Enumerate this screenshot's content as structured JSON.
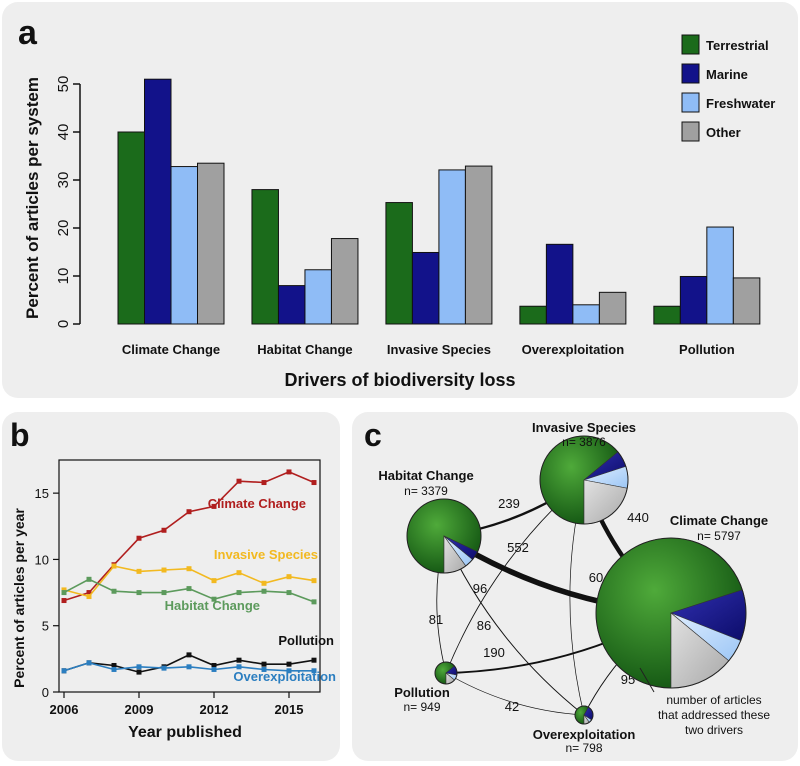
{
  "panels": {
    "a": "a",
    "b": "b",
    "c": "c"
  },
  "chart_data": [
    {
      "id": "a",
      "type": "bar",
      "xlabel": "Drivers of biodiversity loss",
      "ylabel": "Percent of articles per system",
      "ylim": [
        0,
        55
      ],
      "yticks": [
        0,
        10,
        20,
        30,
        40,
        50
      ],
      "categories": [
        "Climate Change",
        "Habitat Change",
        "Invasive Species",
        "Overexploitation",
        "Pollution"
      ],
      "series": [
        {
          "name": "Terrestrial",
          "color": "#1b6b1b",
          "values": [
            40,
            28,
            25.3,
            3.7,
            3.7
          ]
        },
        {
          "name": "Marine",
          "color": "#12128a",
          "values": [
            51,
            8,
            14.9,
            16.6,
            9.9
          ]
        },
        {
          "name": "Freshwater",
          "color": "#8fbcf6",
          "values": [
            32.8,
            11.3,
            32.1,
            4,
            20.2
          ]
        },
        {
          "name": "Other",
          "color": "#a0a0a0",
          "values": [
            33.5,
            17.8,
            32.9,
            6.6,
            9.6
          ]
        }
      ],
      "legend_position": "top-right"
    },
    {
      "id": "b",
      "type": "line",
      "xlabel": "Year published",
      "ylabel": "Percent of articles per year",
      "xlim": [
        2006,
        2016
      ],
      "ylim": [
        0,
        17.5
      ],
      "xticks": [
        2006,
        2009,
        2012,
        2015
      ],
      "yticks": [
        0,
        5,
        10,
        15
      ],
      "x": [
        2006,
        2007,
        2008,
        2009,
        2010,
        2011,
        2012,
        2013,
        2014,
        2015,
        2016
      ],
      "series": [
        {
          "name": "Climate Change",
          "color": "#b01e1e",
          "values": [
            6.9,
            7.5,
            9.6,
            11.6,
            12.2,
            13.6,
            14.0,
            15.9,
            15.8,
            16.6,
            15.8
          ]
        },
        {
          "name": "Invasive Species",
          "color": "#f2b920",
          "values": [
            7.7,
            7.2,
            9.5,
            9.1,
            9.2,
            9.3,
            8.4,
            9.0,
            8.2,
            8.7,
            8.4
          ]
        },
        {
          "name": "Habitat Change",
          "color": "#5c9a5c",
          "values": [
            7.5,
            8.5,
            7.6,
            7.5,
            7.5,
            7.8,
            7.0,
            7.5,
            7.6,
            7.5,
            6.8
          ]
        },
        {
          "name": "Pollution",
          "color": "#111111",
          "values": [
            1.6,
            2.2,
            2.0,
            1.5,
            1.9,
            2.8,
            2.0,
            2.4,
            2.1,
            2.1,
            2.4
          ]
        },
        {
          "name": "Overexploitation",
          "color": "#2b7ec0",
          "values": [
            1.6,
            2.2,
            1.7,
            1.9,
            1.8,
            1.9,
            1.7,
            1.9,
            1.7,
            1.6,
            1.6
          ]
        }
      ]
    },
    {
      "id": "c",
      "type": "network",
      "nodes": [
        {
          "id": "habitat",
          "label": "Habitat Change",
          "n": "n= 3379"
        },
        {
          "id": "invasive",
          "label": "Invasive Species",
          "n": "n= 3876"
        },
        {
          "id": "climate",
          "label": "Climate Change",
          "n": "n= 5797"
        },
        {
          "id": "pollution",
          "label": "Pollution",
          "n": "n= 949"
        },
        {
          "id": "overexploitation",
          "label": "Overexploitation",
          "n": "n= 798"
        }
      ],
      "edges": [
        {
          "source": "habitat",
          "target": "invasive",
          "value": 239
        },
        {
          "source": "invasive",
          "target": "climate",
          "value": 440
        },
        {
          "source": "habitat",
          "target": "climate",
          "value": 552
        },
        {
          "source": "invasive",
          "target": "pollution",
          "value": 86
        },
        {
          "source": "invasive",
          "target": "overexploitation",
          "value": 60
        },
        {
          "source": "habitat",
          "target": "pollution",
          "value": 81
        },
        {
          "source": "habitat",
          "target": "overexploitation",
          "value": 96
        },
        {
          "source": "pollution",
          "target": "climate",
          "value": 190
        },
        {
          "source": "pollution",
          "target": "overexploitation",
          "value": 42
        },
        {
          "source": "climate",
          "target": "overexploitation",
          "value": 95
        }
      ],
      "annotation": "number of articles that addressed these two drivers"
    }
  ]
}
